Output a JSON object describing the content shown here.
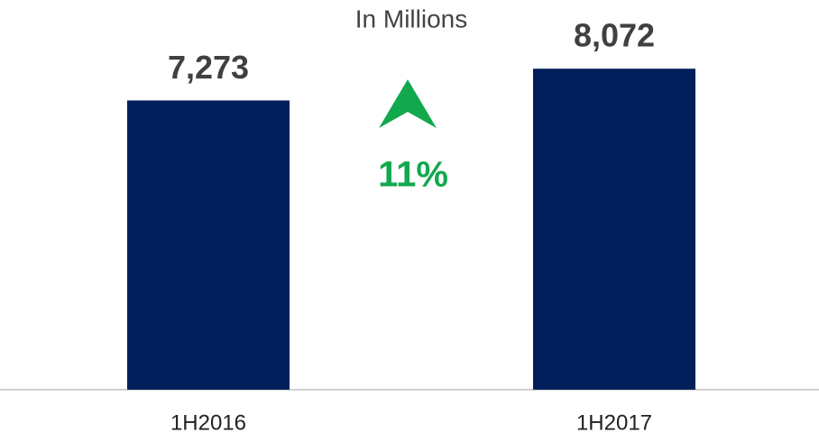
{
  "chart_data": {
    "type": "bar",
    "subtitle": "In Millions",
    "categories": [
      "1H2016",
      "1H2017"
    ],
    "values": [
      7273,
      8072
    ],
    "value_labels": [
      "7,273",
      "8,072"
    ],
    "color": "#001f5b",
    "ylim": [
      0,
      9800
    ],
    "annotation": "11%",
    "annotation_color": "#12a84e"
  }
}
